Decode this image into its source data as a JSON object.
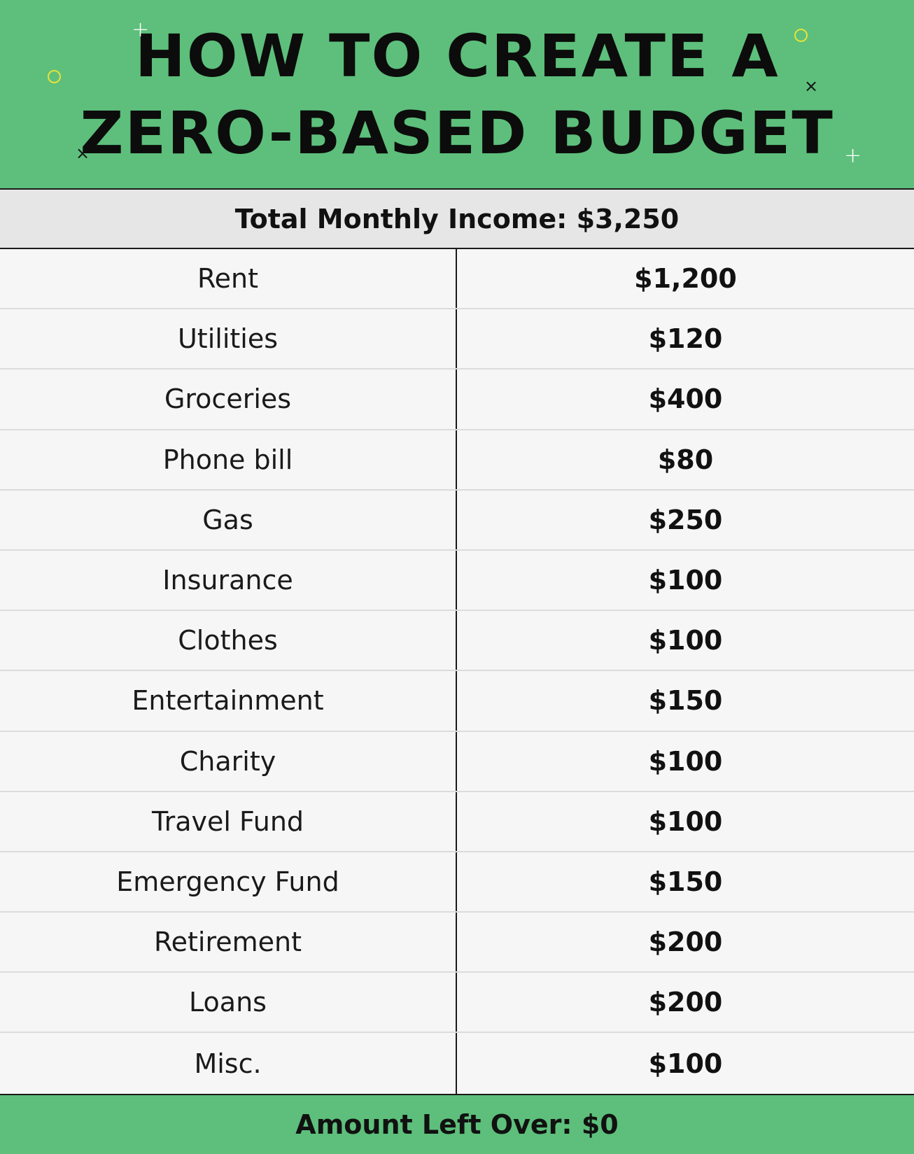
{
  "header": {
    "title_line1": "HOW TO CREATE A",
    "title_line2": "ZERO-BASED BUDGET",
    "background_color": "#5dbf7b"
  },
  "income": {
    "label": "Total Monthly Income: $3,250"
  },
  "budget": {
    "rows": [
      {
        "category": "Rent",
        "amount": "$1,200"
      },
      {
        "category": "Utilities",
        "amount": "$120"
      },
      {
        "category": "Groceries",
        "amount": "$400"
      },
      {
        "category": "Phone bill",
        "amount": "$80"
      },
      {
        "category": "Gas",
        "amount": "$250"
      },
      {
        "category": "Insurance",
        "amount": "$100"
      },
      {
        "category": "Clothes",
        "amount": "$100"
      },
      {
        "category": "Entertainment",
        "amount": "$150"
      },
      {
        "category": "Charity",
        "amount": "$100"
      },
      {
        "category": "Travel Fund",
        "amount": "$100"
      },
      {
        "category": "Emergency Fund",
        "amount": "$150"
      },
      {
        "category": "Retirement",
        "amount": "$200"
      },
      {
        "category": "Loans",
        "amount": "$200"
      },
      {
        "category": "Misc.",
        "amount": "$100"
      }
    ]
  },
  "footer": {
    "label": "Amount Left Over: $0"
  }
}
